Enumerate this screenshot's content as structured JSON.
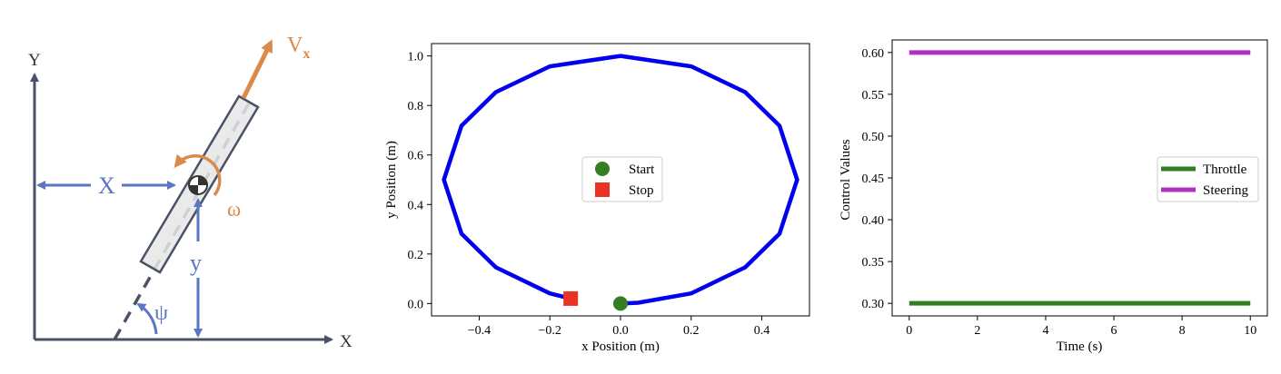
{
  "diagram": {
    "axis_y": "Y",
    "axis_x": "X",
    "vel_main": "V",
    "vel_sub": "x",
    "omega": "ω",
    "dist_x": "X",
    "dist_y": "y",
    "psi": "ψ",
    "colors": {
      "axis": "#4a5266",
      "blue": "#5b76c2",
      "orange": "#db8a4a",
      "body": "#e6e6e6"
    }
  },
  "chart_data": [
    {
      "type": "line",
      "title": "",
      "xlabel": "x Position (m)",
      "ylabel": "y Position (m)",
      "xlim": [
        -0.535,
        0.535
      ],
      "ylim": [
        -0.05,
        1.05
      ],
      "xticks": [
        -0.4,
        -0.2,
        0.0,
        0.2,
        0.4
      ],
      "xtick_labels": [
        "−0.4",
        "−0.2",
        "0.0",
        "0.2",
        "0.4"
      ],
      "yticks": [
        0.0,
        0.2,
        0.4,
        0.6,
        0.8,
        1.0
      ],
      "ytick_labels": [
        "0.0",
        "0.2",
        "0.4",
        "0.6",
        "0.8",
        "1.0"
      ],
      "grid": false,
      "legend_position": "center",
      "series": [
        {
          "color": "#0000ee",
          "x": [
            0.0,
            0.05,
            0.2,
            0.353,
            0.45,
            0.5,
            0.45,
            0.353,
            0.2,
            0.0,
            -0.2,
            -0.353,
            -0.45,
            -0.5,
            -0.45,
            -0.353,
            -0.2,
            -0.141
          ],
          "y": [
            0.0,
            0.003,
            0.041,
            0.146,
            0.282,
            0.5,
            0.718,
            0.854,
            0.958,
            1.0,
            0.958,
            0.854,
            0.718,
            0.5,
            0.282,
            0.146,
            0.041,
            0.02
          ]
        }
      ],
      "markers": [
        {
          "name": "Start",
          "x": 0.0,
          "y": 0.0,
          "shape": "circle",
          "color": "#347d23"
        },
        {
          "name": "Stop",
          "x": -0.141,
          "y": 0.02,
          "shape": "square",
          "color": "#ea3323"
        }
      ]
    },
    {
      "type": "line",
      "title": "",
      "xlabel": "Time (s)",
      "ylabel": "Control Values",
      "xlim": [
        -0.5,
        10.5
      ],
      "ylim": [
        0.285,
        0.615
      ],
      "xticks": [
        0,
        2,
        4,
        6,
        8,
        10
      ],
      "xtick_labels": [
        "0",
        "2",
        "4",
        "6",
        "8",
        "10"
      ],
      "yticks": [
        0.3,
        0.35,
        0.4,
        0.45,
        0.5,
        0.55,
        0.6
      ],
      "ytick_labels": [
        "0.30",
        "0.35",
        "0.40",
        "0.45",
        "0.50",
        "0.55",
        "0.60"
      ],
      "grid": false,
      "legend_position": "center right",
      "series": [
        {
          "name": "Throttle",
          "color": "#347d23",
          "x": [
            0,
            10
          ],
          "y": [
            0.3,
            0.3
          ]
        },
        {
          "name": "Steering",
          "color": "#b030c0",
          "x": [
            0,
            10
          ],
          "y": [
            0.6,
            0.6
          ]
        }
      ]
    }
  ]
}
